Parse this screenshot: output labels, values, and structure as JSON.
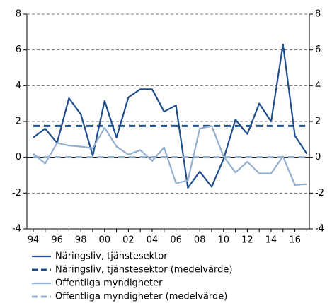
{
  "chart_data": {
    "type": "line",
    "categories": [
      "94",
      null,
      "96",
      null,
      "98",
      null,
      "00",
      null,
      "02",
      null,
      "04",
      null,
      "06",
      null,
      "08",
      null,
      "10",
      null,
      "12",
      null,
      "14",
      null,
      "16",
      null
    ],
    "series": [
      {
        "name": "Näringsliv, tjänstesektor",
        "color": "#1f4e8c",
        "style": "solid",
        "values": [
          1.1,
          1.6,
          0.8,
          3.3,
          2.4,
          0.1,
          3.15,
          1.1,
          3.35,
          3.8,
          3.8,
          2.55,
          2.9,
          -1.7,
          -0.8,
          -1.65,
          -0.1,
          2.1,
          1.3,
          3.0,
          2.0,
          6.3,
          1.2,
          0.2
        ]
      },
      {
        "name": "Näringsliv, tjänstesektor (medelvärde)",
        "color": "#1f4e8c",
        "style": "dashed",
        "value": 1.75
      },
      {
        "name": "Offentliga myndigheter",
        "color": "#93afd0",
        "style": "solid",
        "values": [
          0.2,
          -0.35,
          0.8,
          0.65,
          0.6,
          0.5,
          1.65,
          0.6,
          0.15,
          0.4,
          -0.2,
          0.55,
          -1.45,
          -1.3,
          1.6,
          1.75,
          0.05,
          -0.85,
          -0.25,
          -0.9,
          -0.9,
          0.05,
          -1.55,
          -1.5
        ]
      },
      {
        "name": "Offentliga myndigheter (medelvärde)",
        "color": "#93afd0",
        "style": "dashed",
        "value": 0
      }
    ],
    "ylim": [
      -4,
      8
    ],
    "yticks": [
      -4,
      -2,
      0,
      2,
      4,
      6,
      8
    ],
    "y2lim": [
      -4,
      8
    ],
    "y2ticks": [
      -4,
      -2,
      0,
      2,
      4,
      6,
      8
    ],
    "grid": true
  }
}
